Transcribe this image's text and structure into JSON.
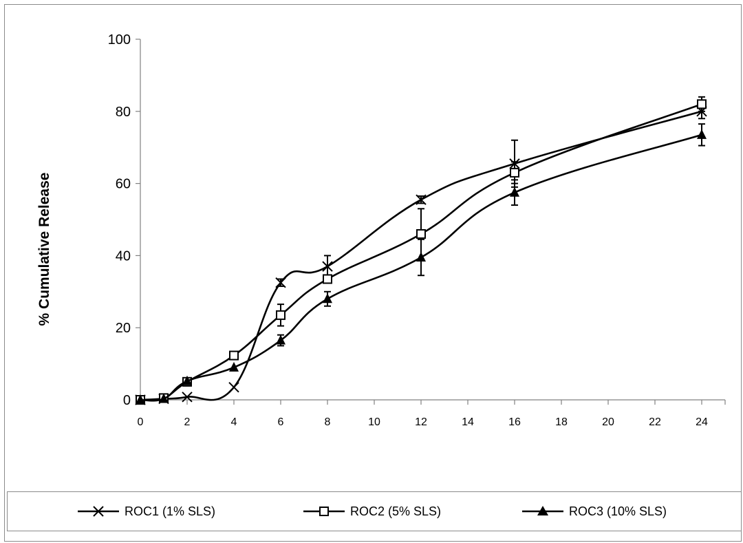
{
  "chart_data": {
    "type": "line",
    "title": "",
    "xlabel": "",
    "ylabel": "% Cumulative Release",
    "x": [
      0,
      1,
      2,
      4,
      6,
      8,
      12,
      16,
      24
    ],
    "xlim": [
      0,
      25
    ],
    "ylim": [
      0,
      100
    ],
    "x_ticks": [
      0,
      2,
      4,
      6,
      8,
      10,
      12,
      14,
      16,
      18,
      20,
      22,
      24
    ],
    "y_ticks": [
      0,
      20,
      40,
      60,
      80,
      100
    ],
    "grid": false,
    "legend_position": "bottom",
    "series": [
      {
        "name": "ROC1 (1% SLS)",
        "marker": "x",
        "color": "#000000",
        "values": [
          0,
          0.3,
          0.8,
          3.5,
          32.5,
          37,
          55.5,
          65.5,
          80
        ],
        "errors": [
          0,
          0,
          0,
          0,
          1,
          3,
          1,
          6.5,
          2
        ]
      },
      {
        "name": "ROC2 (5% SLS)",
        "marker": "square-open",
        "color": "#000000",
        "values": [
          0,
          0.5,
          5,
          12.3,
          23.5,
          33.5,
          46,
          63,
          82
        ],
        "errors": [
          0,
          0,
          0,
          0,
          3,
          0,
          7,
          3,
          2
        ]
      },
      {
        "name": "ROC3 (10% SLS)",
        "marker": "triangle-filled",
        "color": "#000000",
        "values": [
          0,
          0.3,
          5.2,
          9,
          16.5,
          28,
          39.5,
          57.5,
          73.5
        ],
        "errors": [
          0,
          0,
          0,
          0,
          1.5,
          2,
          5,
          3.5,
          3
        ]
      }
    ]
  }
}
